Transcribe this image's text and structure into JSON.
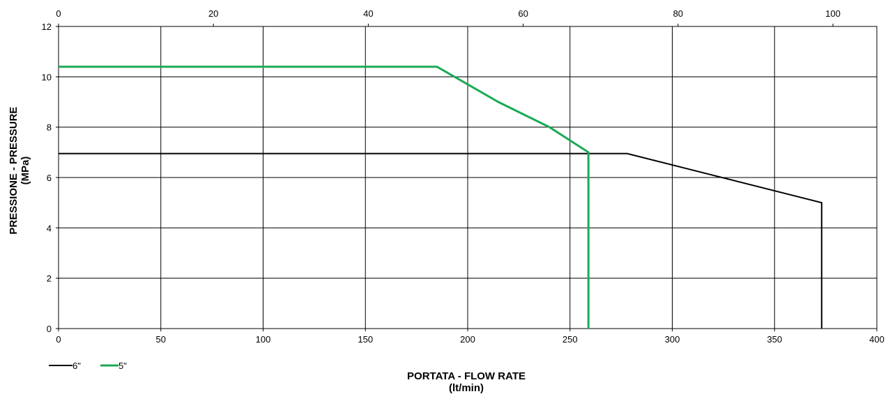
{
  "chart_data": {
    "type": "line",
    "title": "",
    "xlabel": "PORTATA - FLOW RATE",
    "xlabel_unit": "(lt/min)",
    "ylabel": "PRESSIONE - PRESSURE",
    "ylabel_unit": "(MPa)",
    "xlim": [
      0,
      400
    ],
    "ylim": [
      0,
      12
    ],
    "x_ticks": [
      "0",
      "50",
      "100",
      "150",
      "200",
      "250",
      "300",
      "350",
      "400"
    ],
    "y_ticks": [
      "0",
      "2",
      "4",
      "6",
      "8",
      "10",
      "12"
    ],
    "secondary_xlim": [
      0,
      105.67
    ],
    "secondary_x_ticks": [
      "0",
      "20",
      "40",
      "60",
      "80",
      "100"
    ],
    "grid": true,
    "legend": "bottom-left",
    "series": [
      {
        "name": "6\"",
        "color": "#000000",
        "points": [
          [
            0,
            6.95
          ],
          [
            278,
            6.95
          ],
          [
            373,
            5.0
          ],
          [
            373,
            0
          ]
        ]
      },
      {
        "name": "5\"",
        "color": "#1aaa55",
        "points": [
          [
            0,
            10.4
          ],
          [
            185,
            10.4
          ],
          [
            215,
            9.0
          ],
          [
            240,
            8.0
          ],
          [
            259,
            7.0
          ],
          [
            259,
            0
          ]
        ]
      }
    ]
  }
}
